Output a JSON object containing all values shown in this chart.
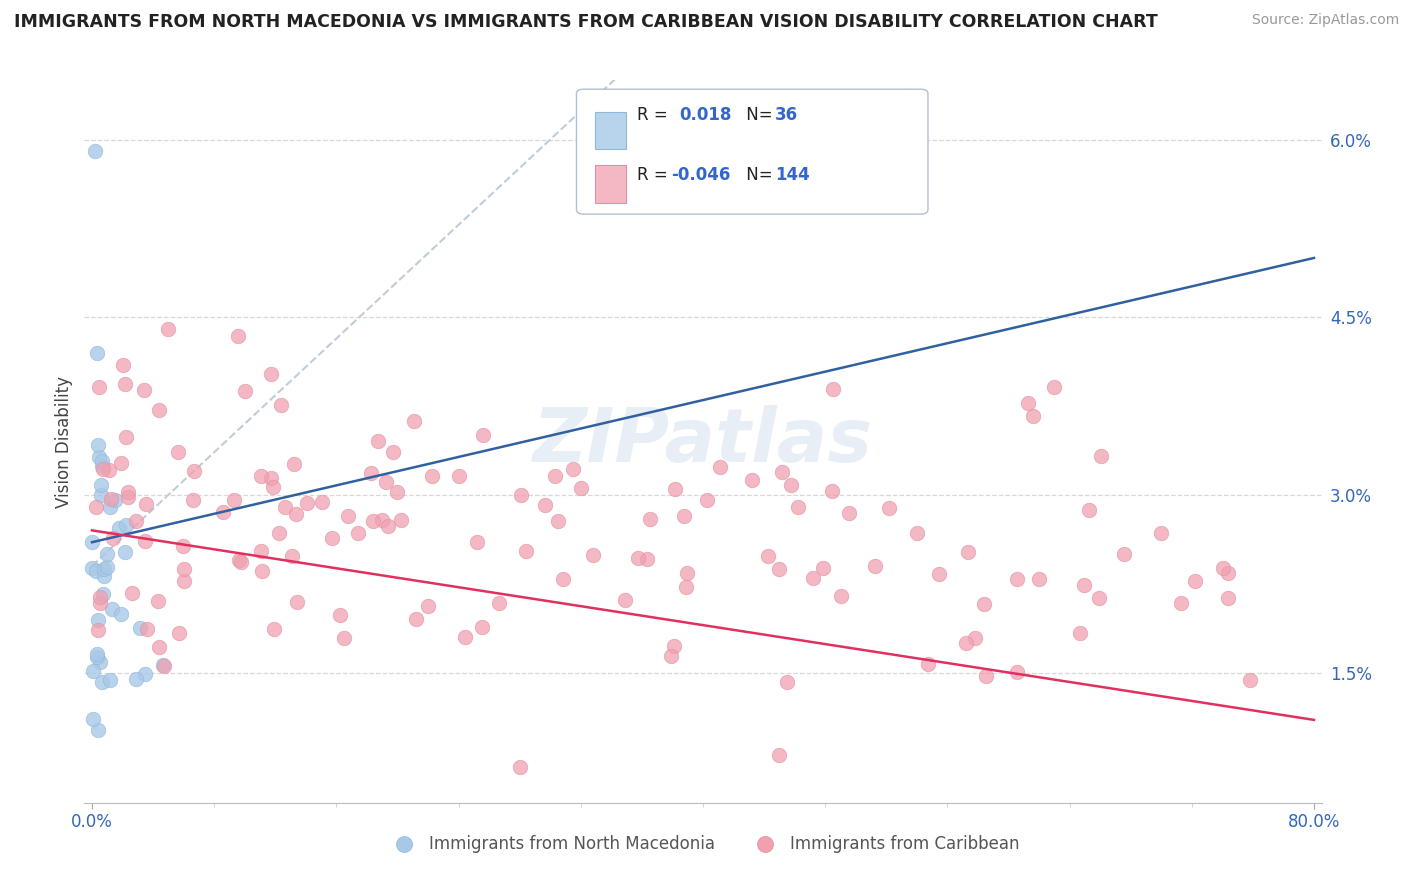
{
  "title": "IMMIGRANTS FROM NORTH MACEDONIA VS IMMIGRANTS FROM CARIBBEAN VISION DISABILITY CORRELATION CHART",
  "source": "Source: ZipAtlas.com",
  "ylabel": "Vision Disability",
  "ytick_values": [
    0.015,
    0.03,
    0.045,
    0.06
  ],
  "ytick_labels": [
    "1.5%",
    "3.0%",
    "4.5%",
    "6.0%"
  ],
  "xmin": 0.0,
  "xmax": 0.8,
  "ymin": 0.004,
  "ymax": 0.065,
  "blue_color": "#A8C8E8",
  "pink_color": "#F0A0B0",
  "blue_line_color": "#3060A0",
  "pink_line_color": "#E03060",
  "dashed_color": "#C0CDD8",
  "grid_color": "#D8D8D8",
  "legend_blue_fill": "#B8D4EC",
  "legend_pink_fill": "#F4B8C4",
  "legend_border": "#B0C0D4",
  "watermark": "ZIPatlas",
  "watermark_color": "#D8E4F0",
  "label1": "Immigrants from North Macedonia",
  "label2": "Immigrants from Caribbean",
  "r1": 0.018,
  "n1": 36,
  "r2": -0.046,
  "n2": 144,
  "nm_seed": 99,
  "car_seed": 77
}
